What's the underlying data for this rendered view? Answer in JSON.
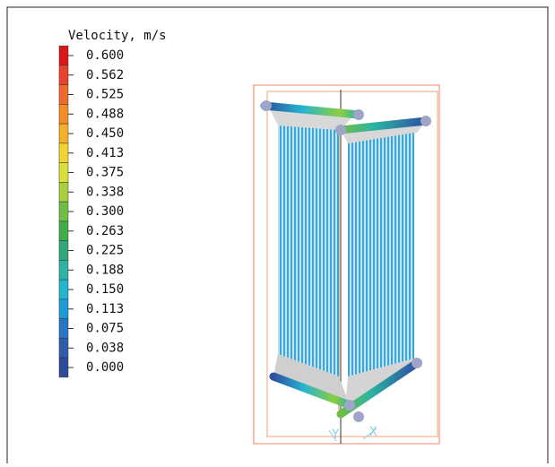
{
  "legend": {
    "title": "Velocity, m/s",
    "labels": [
      "0.600",
      "0.562",
      "0.525",
      "0.488",
      "0.450",
      "0.413",
      "0.375",
      "0.338",
      "0.300",
      "0.263",
      "0.225",
      "0.188",
      "0.150",
      "0.113",
      "0.075",
      "0.038",
      "0.000"
    ]
  },
  "axes": {
    "y": "Y",
    "x": "X"
  }
}
